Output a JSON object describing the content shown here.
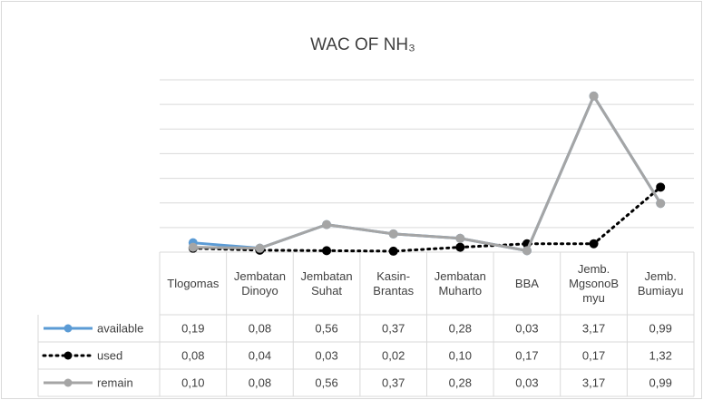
{
  "chart_data": {
    "type": "line",
    "title": "WAC OF NH₃",
    "categories": [
      "Tlogomas",
      "Jembatan Dinoyo",
      "Jembatan Suhat",
      "Kasin-Brantas",
      "Jembatan Muharto",
      "BBA",
      "Jemb. MgsonoB myu",
      "Jemb. Bumiayu"
    ],
    "series": [
      {
        "name": "available",
        "color": "#5b9bd5",
        "values": [
          0.19,
          0.08,
          0.56,
          0.37,
          0.28,
          0.03,
          3.17,
          0.99
        ],
        "value_labels": [
          "0,19",
          "0,08",
          "0,56",
          "0,37",
          "0,28",
          "0,03",
          "3,17",
          "0,99"
        ]
      },
      {
        "name": "used",
        "color": "#000000",
        "dashed": true,
        "values": [
          0.08,
          0.04,
          0.03,
          0.02,
          0.1,
          0.17,
          0.17,
          1.32
        ],
        "value_labels": [
          "0,08",
          "0,04",
          "0,03",
          "0,02",
          "0,10",
          "0,17",
          "0,17",
          "1,32"
        ]
      },
      {
        "name": "remain",
        "color": "#a5a5a5",
        "values": [
          0.1,
          0.08,
          0.56,
          0.37,
          0.28,
          0.03,
          3.17,
          0.99
        ],
        "value_labels": [
          "0,10",
          "0,08",
          "0,56",
          "0,37",
          "0,28",
          "0,03",
          "3,17",
          "0,99"
        ]
      }
    ],
    "ylim": [
      0,
      3.5
    ],
    "yticks": [
      0,
      0.5,
      1,
      1.5,
      2,
      2.5,
      3,
      3.5
    ],
    "grid": true
  }
}
